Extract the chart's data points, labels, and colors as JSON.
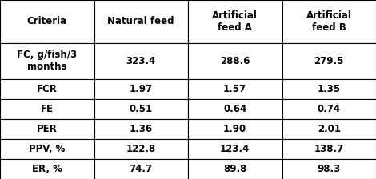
{
  "columns": [
    "Criteria",
    "Natural feed",
    "Artificial\nfeed A",
    "Artificial\nfeed B"
  ],
  "rows": [
    [
      "FC, g/fish/3\nmonths",
      "323.4",
      "288.6",
      "279.5"
    ],
    [
      "FCR",
      "1.97",
      "1.57",
      "1.35"
    ],
    [
      "FE",
      "0.51",
      "0.64",
      "0.74"
    ],
    [
      "PER",
      "1.36",
      "1.90",
      "2.01"
    ],
    [
      "PPV, %",
      "122.8",
      "123.4",
      "138.7"
    ],
    [
      "ER, %",
      "74.7",
      "89.8",
      "98.3"
    ]
  ],
  "background_color": "#ffffff",
  "text_color": "#000000",
  "border_color": "#000000",
  "font_size": 8.5
}
